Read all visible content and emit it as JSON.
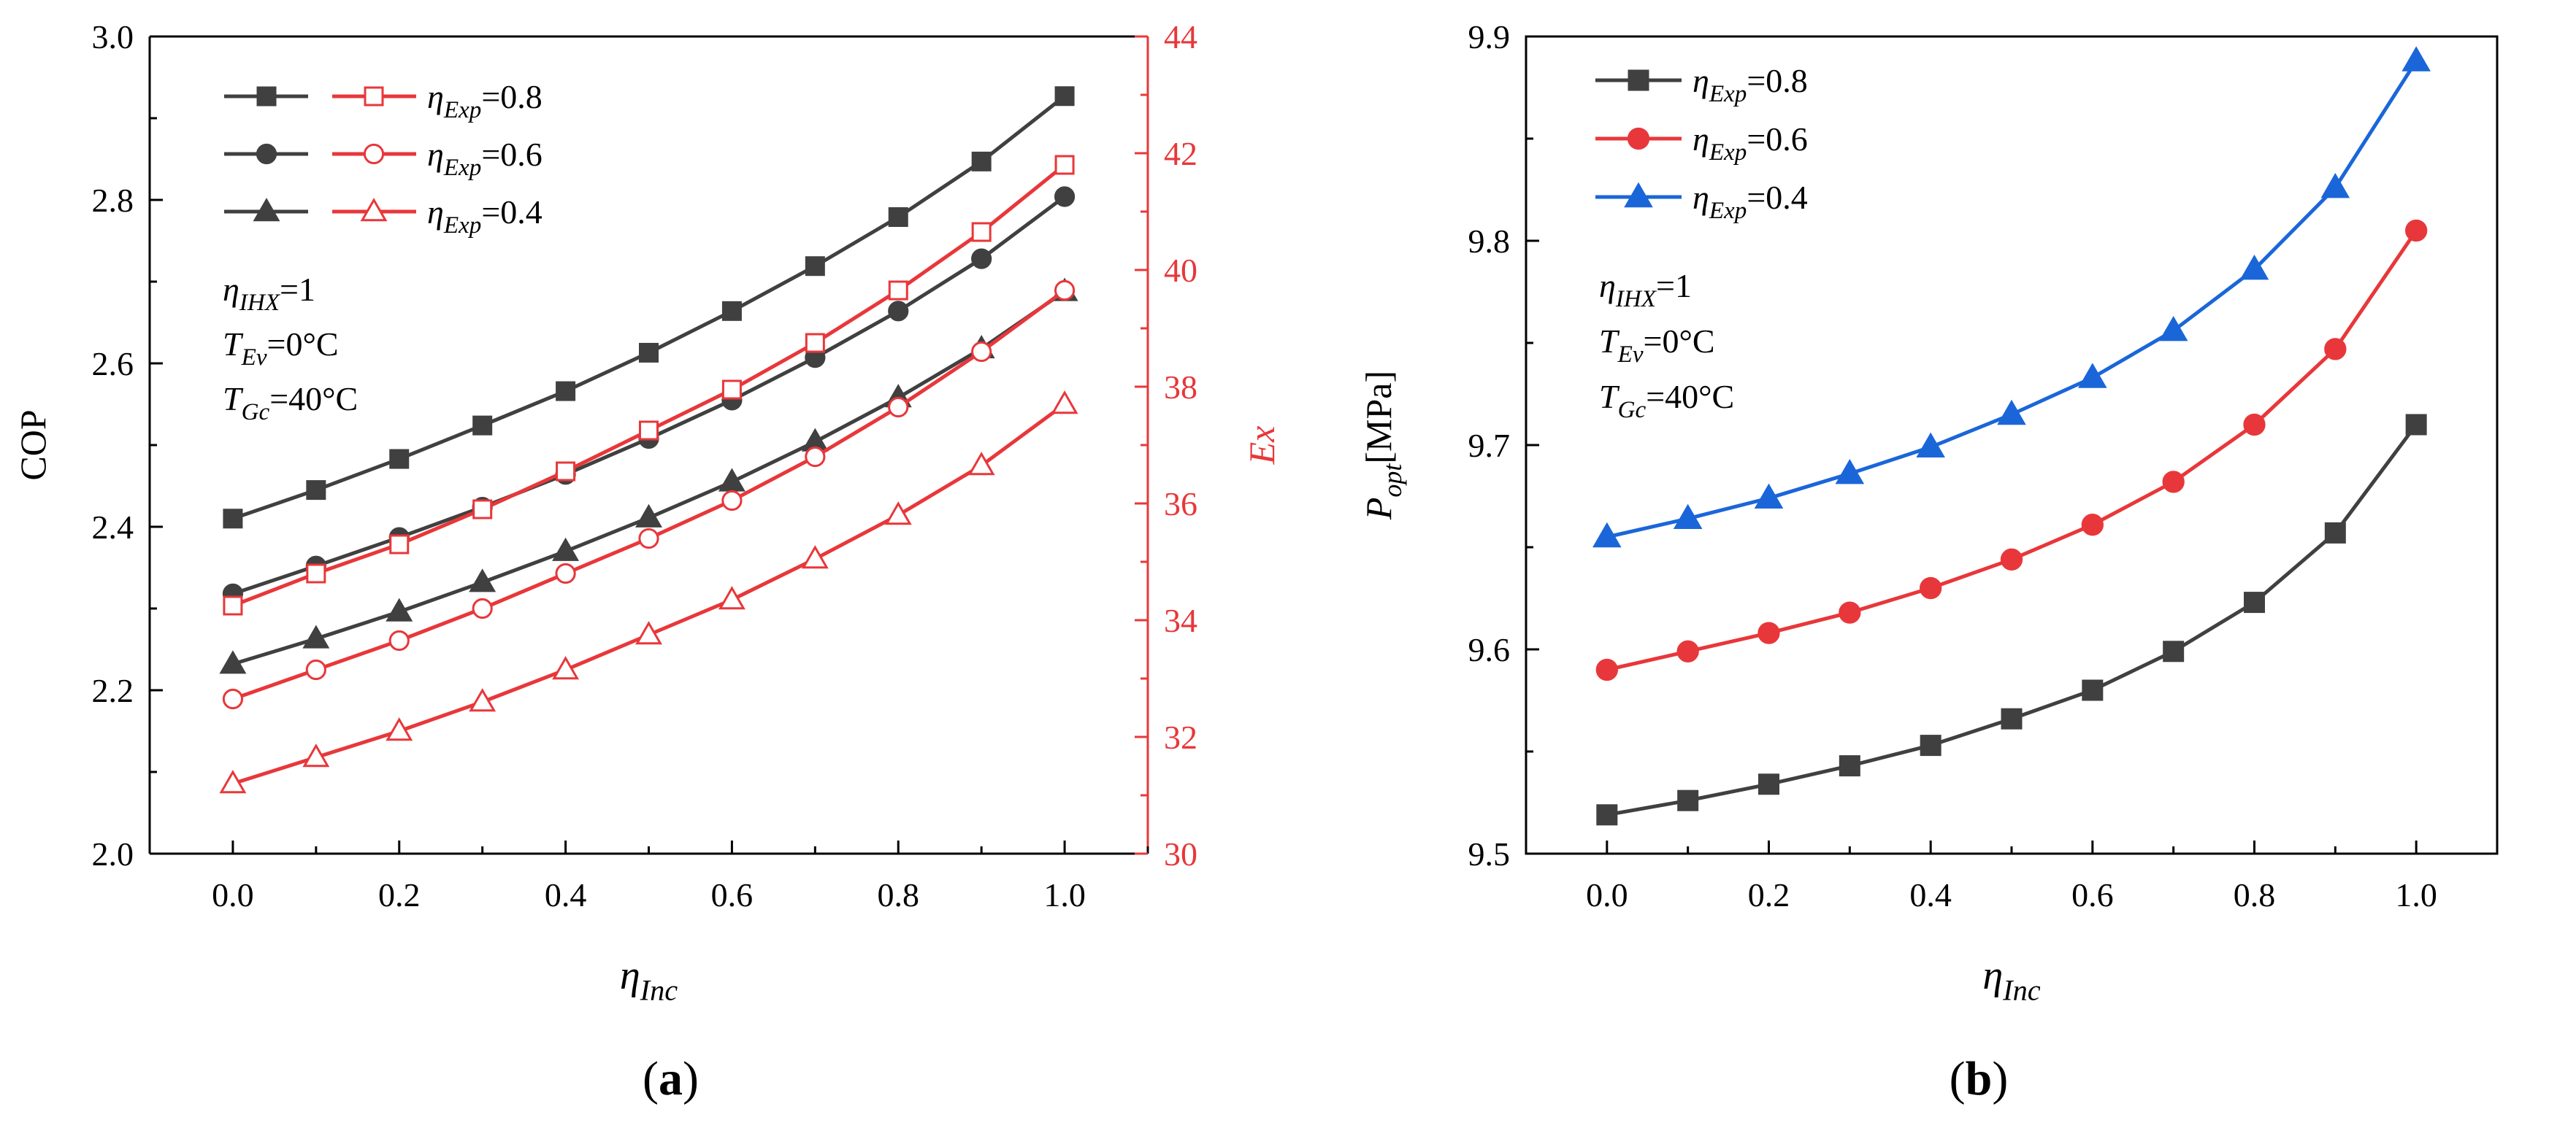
{
  "colors": {
    "dark": "#404040",
    "red": "#e8373a",
    "blue": "#1a66d9",
    "axis": "#000000"
  },
  "chart_data": [
    {
      "id": "a",
      "type": "line",
      "panel_label": "(a)",
      "panel_label_letter": "a",
      "xlabel_symbol": "η",
      "xlabel_sub": "Inc",
      "ylabel": "COP",
      "y2label": "Ex",
      "xlim": [
        -0.1,
        1.1
      ],
      "ylim": [
        2.0,
        3.0
      ],
      "y2lim": [
        30,
        44
      ],
      "x_ticks": [
        0.0,
        0.2,
        0.4,
        0.6,
        0.8,
        1.0
      ],
      "x_tick_labels": [
        "0.0",
        "0.2",
        "0.4",
        "0.6",
        "0.8",
        "1.0"
      ],
      "y_ticks": [
        2.0,
        2.2,
        2.4,
        2.6,
        2.8,
        3.0
      ],
      "y_tick_labels": [
        "2.0",
        "2.2",
        "2.4",
        "2.6",
        "2.8",
        "3.0"
      ],
      "y2_ticks": [
        30,
        32,
        34,
        36,
        38,
        40,
        42,
        44
      ],
      "y2_tick_labels": [
        "30",
        "32",
        "34",
        "36",
        "38",
        "40",
        "42",
        "44"
      ],
      "x": [
        0.0,
        0.1,
        0.2,
        0.3,
        0.4,
        0.5,
        0.6,
        0.7,
        0.8,
        0.9,
        1.0
      ],
      "series": [
        {
          "name": "COP ηExp=0.8",
          "axis": "left",
          "color": "dark",
          "marker": "square",
          "filled": true,
          "values": [
            2.41,
            2.445,
            2.483,
            2.524,
            2.566,
            2.613,
            2.664,
            2.719,
            2.779,
            2.847,
            2.927
          ]
        },
        {
          "name": "COP ηExp=0.6",
          "axis": "left",
          "color": "dark",
          "marker": "circle",
          "filled": true,
          "values": [
            2.318,
            2.352,
            2.387,
            2.424,
            2.464,
            2.508,
            2.555,
            2.607,
            2.664,
            2.728,
            2.804
          ]
        },
        {
          "name": "COP ηExp=0.4",
          "axis": "left",
          "color": "dark",
          "marker": "triangle",
          "filled": true,
          "values": [
            2.232,
            2.263,
            2.296,
            2.332,
            2.37,
            2.411,
            2.455,
            2.504,
            2.558,
            2.618,
            2.688
          ]
        },
        {
          "name": "Ex ηExp=0.8",
          "axis": "right",
          "color": "red",
          "marker": "square",
          "filled": false,
          "values": [
            34.25,
            34.8,
            35.3,
            35.9,
            36.55,
            37.25,
            37.95,
            38.75,
            39.65,
            40.65,
            41.8
          ]
        },
        {
          "name": "Ex ηExp=0.6",
          "axis": "right",
          "color": "red",
          "marker": "circle",
          "filled": false,
          "values": [
            32.65,
            33.15,
            33.65,
            34.2,
            34.8,
            35.4,
            36.05,
            36.8,
            37.65,
            38.6,
            39.65
          ]
        },
        {
          "name": "Ex ηExp=0.4",
          "axis": "right",
          "color": "red",
          "marker": "triangle",
          "filled": false,
          "values": [
            31.2,
            31.65,
            32.1,
            32.6,
            33.15,
            33.75,
            34.35,
            35.05,
            35.8,
            36.65,
            37.7
          ]
        }
      ],
      "legend": [
        {
          "sym": "η",
          "sub": "Exp",
          "rest": "=0.8"
        },
        {
          "sym": "η",
          "sub": "Exp",
          "rest": "=0.6"
        },
        {
          "sym": "η",
          "sub": "Exp",
          "rest": "=0.4"
        }
      ],
      "annotation": [
        {
          "sym": "η",
          "sub": "IHX",
          "rest": "=1"
        },
        {
          "sym": "T",
          "sub": "Ev",
          "rest": "=0°C"
        },
        {
          "sym": "T",
          "sub": "Gc",
          "rest": "=40°C"
        }
      ]
    },
    {
      "id": "b",
      "type": "line",
      "panel_label": "(b)",
      "panel_label_letter": "b",
      "xlabel_symbol": "η",
      "xlabel_sub": "Inc",
      "ylabel_symbol": "P",
      "ylabel_sub": "opt",
      "ylabel_rest": "[MPa]",
      "xlim": [
        -0.1,
        1.1
      ],
      "ylim": [
        9.5,
        9.9
      ],
      "x_ticks": [
        0.0,
        0.2,
        0.4,
        0.6,
        0.8,
        1.0
      ],
      "x_tick_labels": [
        "0.0",
        "0.2",
        "0.4",
        "0.6",
        "0.8",
        "1.0"
      ],
      "y_ticks": [
        9.5,
        9.6,
        9.7,
        9.8,
        9.9
      ],
      "y_tick_labels": [
        "9.5",
        "9.6",
        "9.7",
        "9.8",
        "9.9"
      ],
      "x": [
        0.0,
        0.1,
        0.2,
        0.3,
        0.4,
        0.5,
        0.6,
        0.7,
        0.8,
        0.9,
        1.0
      ],
      "series": [
        {
          "name": "ηExp=0.8",
          "color": "dark",
          "marker": "square",
          "filled": true,
          "values": [
            9.519,
            9.526,
            9.534,
            9.543,
            9.553,
            9.566,
            9.58,
            9.599,
            9.623,
            9.657,
            9.71
          ]
        },
        {
          "name": "ηExp=0.6",
          "color": "red",
          "marker": "circle",
          "filled": true,
          "values": [
            9.59,
            9.599,
            9.608,
            9.618,
            9.63,
            9.644,
            9.661,
            9.682,
            9.71,
            9.747,
            9.805
          ]
        },
        {
          "name": "ηExp=0.4",
          "color": "blue",
          "marker": "triangle",
          "filled": true,
          "values": [
            9.655,
            9.664,
            9.674,
            9.686,
            9.699,
            9.715,
            9.733,
            9.756,
            9.786,
            9.826,
            9.888
          ]
        }
      ],
      "legend": [
        {
          "sym": "η",
          "sub": "Exp",
          "rest": "=0.8"
        },
        {
          "sym": "η",
          "sub": "Exp",
          "rest": "=0.6"
        },
        {
          "sym": "η",
          "sub": "Exp",
          "rest": "=0.4"
        }
      ],
      "annotation": [
        {
          "sym": "η",
          "sub": "IHX",
          "rest": "=1"
        },
        {
          "sym": "T",
          "sub": "Ev",
          "rest": "=0°C"
        },
        {
          "sym": "T",
          "sub": "Gc",
          "rest": "=40°C"
        }
      ]
    }
  ]
}
